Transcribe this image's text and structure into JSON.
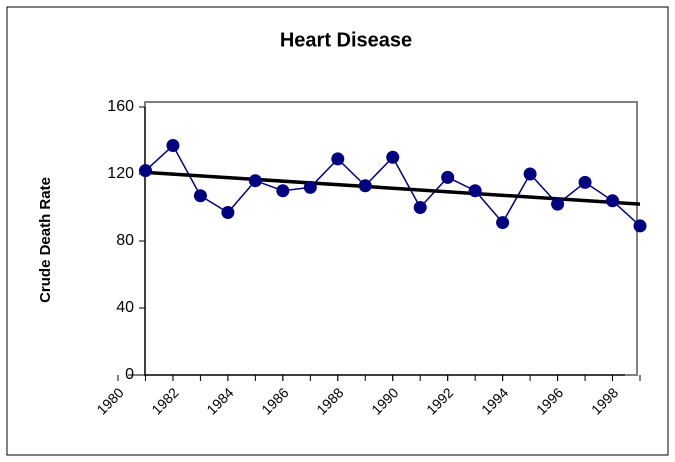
{
  "chart_data": {
    "type": "line",
    "title": "Heart Disease",
    "y_label": "Crude Death Rate",
    "x": [
      1981,
      1982,
      1983,
      1984,
      1985,
      1986,
      1987,
      1988,
      1989,
      1990,
      1991,
      1992,
      1993,
      1994,
      1995,
      1996,
      1997,
      1998,
      1999
    ],
    "values": [
      122,
      137,
      107,
      97,
      116,
      110,
      112,
      129,
      113,
      130,
      100,
      118,
      110,
      91,
      120,
      102,
      115,
      104,
      89
    ],
    "color": "#000080",
    "trend": {
      "x": [
        1981,
        1999
      ],
      "values": [
        121,
        102
      ],
      "color": "#000000"
    },
    "xlim": [
      1980,
      1999
    ],
    "xticks": [
      1980,
      1982,
      1984,
      1986,
      1988,
      1990,
      1992,
      1994,
      1996,
      1998
    ],
    "ylim": [
      0,
      160
    ],
    "yticks": [
      0,
      40,
      80,
      120,
      160
    ]
  }
}
